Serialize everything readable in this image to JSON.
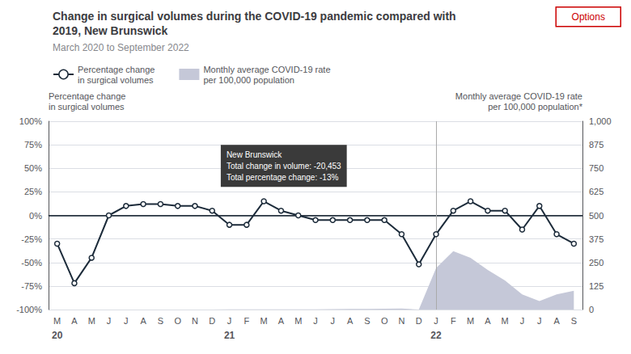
{
  "chart_data": {
    "type": "line",
    "title": "Change in surgical volumes during the COVID-19 pandemic compared with\n2019, New Brunswick",
    "subtitle": "March 2020 to September 2022",
    "y_label": "Percentage change\nin surgical volumes",
    "y2_label": "Monthly average COVID-19 rate\nper 100,000 population*",
    "categories": [
      "M",
      "A",
      "M",
      "J",
      "J",
      "A",
      "S",
      "O",
      "N",
      "D",
      "J",
      "F",
      "M",
      "A",
      "M",
      "J",
      "J",
      "A",
      "S",
      "O",
      "N",
      "D",
      "J",
      "F",
      "M",
      "A",
      "M",
      "J",
      "J",
      "A",
      "S"
    ],
    "series": [
      {
        "name": "Percentage change\nin surgical volumes",
        "type": "line",
        "marker": "circle",
        "color": "#1c2b3a",
        "values": [
          -30,
          -72,
          -45,
          0,
          10,
          12,
          12,
          10,
          10,
          5,
          -10,
          -10,
          15,
          5,
          0,
          -5,
          -5,
          -5,
          -5,
          -5,
          -20,
          -52,
          -20,
          5,
          15,
          5,
          5,
          -15,
          10,
          -20,
          -30
        ]
      },
      {
        "name": "Monthly average COVID-19 rate\nper 100,000 population",
        "type": "area",
        "axis": "y2",
        "color": "#c5c8d8",
        "values": [
          0,
          0,
          0,
          0,
          0,
          0,
          0,
          0,
          0,
          0,
          1,
          1,
          1,
          1,
          1,
          1,
          2,
          3,
          3,
          4,
          5,
          0,
          220,
          310,
          275,
          210,
          155,
          80,
          45,
          80,
          100
        ]
      }
    ],
    "ylim": [
      -100,
      100
    ],
    "yticks": [
      {
        "value": -100,
        "label": "-100%"
      },
      {
        "value": -75,
        "label": "-75%"
      },
      {
        "value": -50,
        "label": "-50%"
      },
      {
        "value": -25,
        "label": "-25%"
      },
      {
        "value": 0,
        "label": "0%"
      },
      {
        "value": 25,
        "label": "25%"
      },
      {
        "value": 50,
        "label": "50%"
      },
      {
        "value": 75,
        "label": "75%"
      },
      {
        "value": 100,
        "label": "100%"
      }
    ],
    "y2lim": [
      0,
      1000
    ],
    "y2ticks": [
      0,
      125,
      250,
      375,
      500,
      625,
      750,
      875,
      {
        "value": 1000,
        "label": "1,000"
      }
    ],
    "grid": true,
    "legend": "top",
    "year_labels": [
      {
        "label": "20",
        "index": 0
      },
      {
        "label": "21",
        "index": 10
      },
      {
        "label": "22",
        "index": 22
      }
    ],
    "vline_x": 22,
    "hline_y": 0,
    "annotations": [
      {
        "text": "New Brunswick\nTotal change in volume: -20,453\nTotal percentage change: -13%",
        "x": 9,
        "y": 75
      }
    ],
    "button": {
      "text": "Options",
      "color": "#cc0000"
    }
  }
}
